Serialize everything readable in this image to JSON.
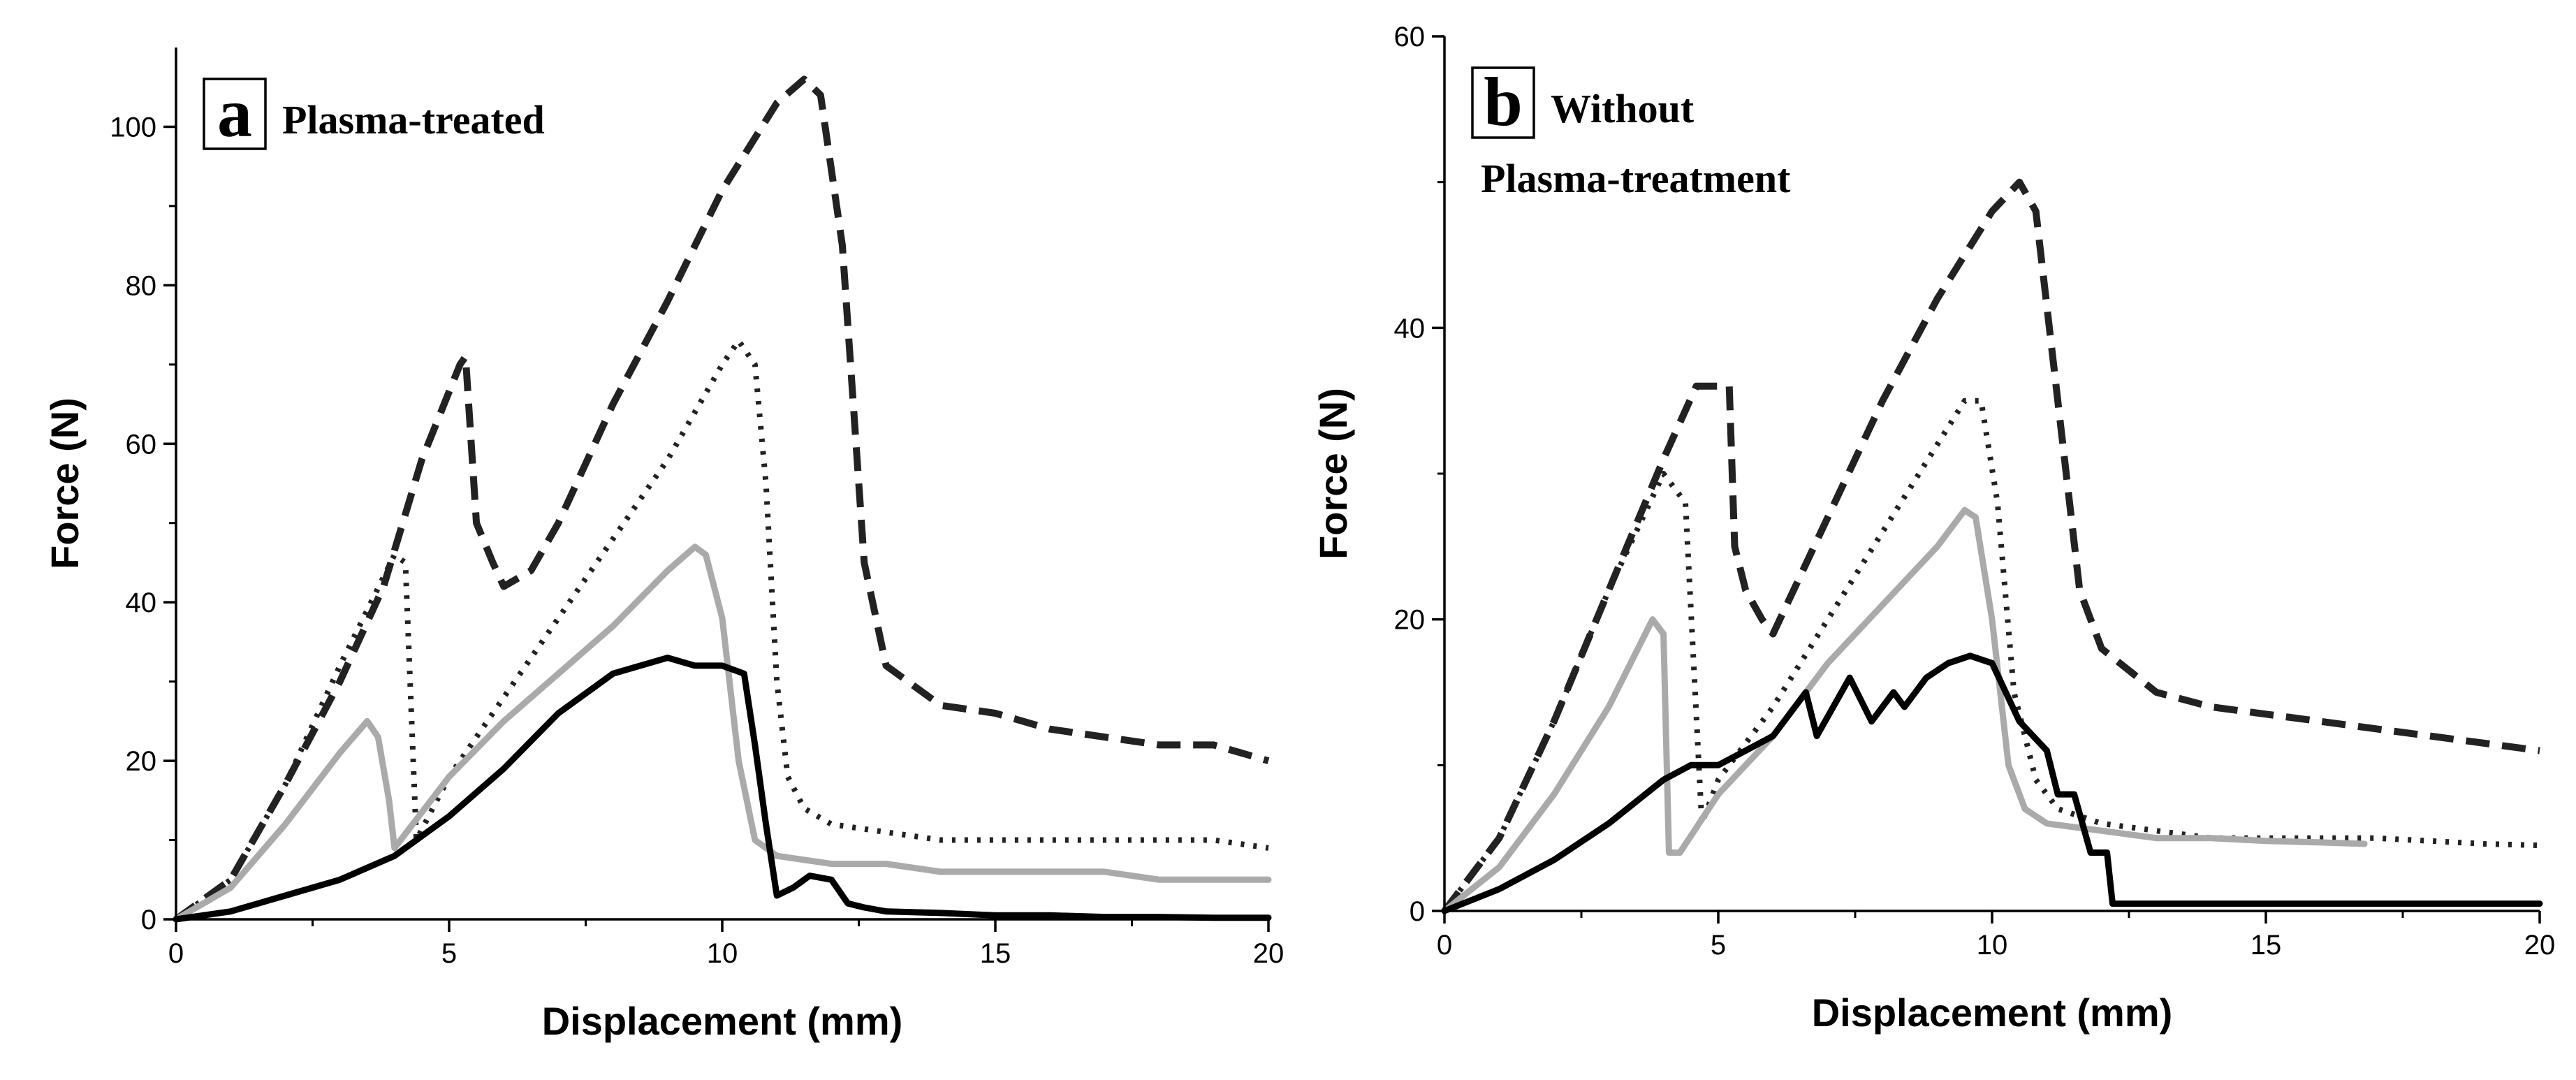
{
  "chart_data": [
    {
      "type": "line",
      "panel_letter": "a",
      "title_lines": [
        "Plasma-treated"
      ],
      "xlabel": "Displacement (mm)",
      "ylabel": "Force (N)",
      "xlim": [
        0,
        20
      ],
      "ylim": [
        0,
        110
      ],
      "xticks": [
        0,
        5,
        10,
        15,
        20
      ],
      "yticks": [
        0,
        20,
        40,
        60,
        80,
        100
      ],
      "tick_labels_x": [
        "0",
        "5",
        "10",
        "15",
        "20"
      ],
      "tick_labels_y": [
        "0",
        "20",
        "40",
        "60",
        "80",
        "100"
      ],
      "series": [
        {
          "style": "dashed",
          "color": "#222222",
          "x": [
            0,
            1,
            2,
            3,
            3.8,
            4.5,
            5.2,
            5.3,
            5.5,
            5.8,
            6,
            6.5,
            7,
            8,
            9,
            10,
            11,
            11.5,
            11.8,
            12.2,
            12.6,
            13,
            14,
            15,
            16,
            17,
            18,
            19,
            20
          ],
          "y": [
            0,
            5,
            17,
            30,
            42,
            58,
            70,
            71,
            50,
            45,
            42,
            44,
            50,
            65,
            78,
            92,
            103,
            106,
            104,
            85,
            45,
            32,
            27,
            26,
            24,
            23,
            22,
            22,
            20
          ]
        },
        {
          "style": "dotted",
          "color": "#222222",
          "x": [
            0,
            1,
            2,
            3,
            4,
            4.2,
            4.4,
            5,
            6,
            7,
            8,
            9,
            10,
            10.3,
            10.6,
            10.8,
            11,
            11.2,
            11.5,
            12,
            13,
            14,
            15,
            16,
            17,
            18,
            19,
            20
          ],
          "y": [
            0,
            5,
            17,
            32,
            46,
            45,
            10,
            18,
            28,
            38,
            48,
            58,
            70,
            73,
            70,
            55,
            30,
            18,
            14,
            12,
            11,
            10,
            10,
            10,
            10,
            10,
            10,
            9
          ]
        },
        {
          "style": "solid",
          "color": "#aaaaaa",
          "x": [
            0,
            1,
            2,
            3,
            3.5,
            3.7,
            3.9,
            4,
            5,
            6,
            7,
            8,
            9,
            9.5,
            9.7,
            10,
            10.3,
            10.6,
            11,
            12,
            13,
            14,
            15,
            16,
            17,
            18,
            19,
            20
          ],
          "y": [
            0,
            4,
            12,
            21,
            25,
            23,
            15,
            9,
            18,
            25,
            31,
            37,
            44,
            47,
            46,
            38,
            20,
            10,
            8,
            7,
            7,
            6,
            6,
            6,
            6,
            5,
            5,
            5
          ]
        },
        {
          "style": "solid",
          "color": "#000000",
          "x": [
            0,
            1,
            2,
            3,
            4,
            5,
            6,
            7,
            8,
            9,
            9.5,
            10,
            10.4,
            10.6,
            10.8,
            11,
            11.3,
            11.6,
            12,
            12.3,
            12.6,
            13,
            14,
            15,
            16,
            17,
            18,
            19,
            20
          ],
          "y": [
            0,
            1,
            3,
            5,
            8,
            13,
            19,
            26,
            31,
            33,
            32,
            32,
            31,
            22,
            12,
            3,
            4,
            5.5,
            5,
            2,
            1.5,
            1,
            0.8,
            0.5,
            0.5,
            0.3,
            0.3,
            0.2,
            0.2
          ]
        }
      ]
    },
    {
      "type": "line",
      "panel_letter": "b",
      "title_lines": [
        "Without",
        "Plasma-treatment"
      ],
      "xlabel": "Displacement (mm)",
      "ylabel": "Force (N)",
      "xlim": [
        0,
        20
      ],
      "ylim": [
        0,
        60
      ],
      "xticks": [
        0,
        5,
        10,
        15,
        20
      ],
      "yticks": [
        0,
        20,
        40,
        60
      ],
      "tick_labels_x": [
        "0",
        "5",
        "10",
        "15",
        "20"
      ],
      "tick_labels_y": [
        "0",
        "20",
        "40",
        "60"
      ],
      "series": [
        {
          "style": "dashed",
          "color": "#222222",
          "x": [
            0,
            1,
            2,
            3,
            4,
            4.6,
            5.2,
            5.3,
            5.5,
            5.8,
            6,
            7,
            8,
            9,
            10,
            10.5,
            10.8,
            11.2,
            11.6,
            12,
            13,
            14,
            15,
            16,
            17,
            18,
            19,
            20
          ],
          "y": [
            0,
            5,
            13,
            22,
            31,
            36,
            36,
            25,
            22,
            20,
            19,
            27,
            35,
            42,
            48,
            50,
            48,
            35,
            22,
            18,
            15,
            14,
            13.5,
            13,
            12.5,
            12,
            11.5,
            11
          ]
        },
        {
          "style": "dotted",
          "color": "#222222",
          "x": [
            0,
            1,
            2,
            3,
            4,
            4.4,
            4.7,
            5,
            6,
            7,
            8,
            9,
            9.5,
            9.8,
            10.1,
            10.4,
            10.8,
            11.2,
            12,
            13,
            14,
            15,
            16,
            17,
            18,
            19,
            20
          ],
          "y": [
            0,
            5,
            13,
            22,
            30,
            28,
            6,
            9,
            14,
            20,
            26,
            32,
            35,
            35,
            28,
            15,
            9,
            7,
            6,
            5.5,
            5,
            5,
            5,
            5,
            4.8,
            4.6,
            4.5
          ]
        },
        {
          "style": "solid",
          "color": "#aaaaaa",
          "x": [
            0,
            1,
            2,
            3,
            3.8,
            4,
            4.1,
            4.3,
            5,
            6,
            7,
            8,
            9,
            9.5,
            9.7,
            10,
            10.3,
            10.6,
            11,
            12,
            13,
            14,
            15,
            16,
            16.8
          ],
          "y": [
            0,
            3,
            8,
            14,
            20,
            19,
            4,
            4,
            8,
            12,
            17,
            21,
            25,
            27.5,
            27,
            20,
            10,
            7,
            6,
            5.5,
            5,
            5,
            4.8,
            4.7,
            4.6
          ]
        },
        {
          "style": "solid",
          "color": "#000000",
          "x": [
            0,
            1,
            2,
            3,
            4,
            4.5,
            5,
            5.5,
            6,
            6.6,
            6.8,
            7.4,
            7.8,
            8.2,
            8.4,
            8.8,
            9.2,
            9.6,
            10,
            10.5,
            11,
            11.2,
            11.5,
            11.8,
            12.1,
            12.2,
            13,
            14,
            15,
            16,
            17,
            18,
            19,
            20
          ],
          "y": [
            0,
            1.5,
            3.5,
            6,
            9,
            10,
            10,
            11,
            12,
            15,
            12,
            16,
            13,
            15,
            14,
            16,
            17,
            17.5,
            17,
            13,
            11,
            8,
            8,
            4,
            4,
            0.5,
            0.5,
            0.5,
            0.5,
            0.5,
            0.5,
            0.5,
            0.5,
            0.5
          ]
        }
      ]
    }
  ]
}
